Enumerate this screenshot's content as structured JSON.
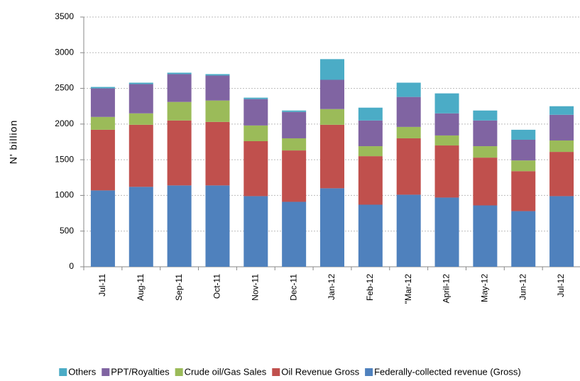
{
  "chart_data": {
    "type": "stacked-bar",
    "y_label": "N' billion",
    "categories": [
      "Jul-11",
      "Aug-11",
      "Sep-11",
      "Oct-11",
      "Nov-11",
      "Dec-11",
      "Jan-12",
      "Feb-12",
      "\"Mar-12",
      "April-12",
      "May-12",
      "Jun-12",
      "Jul-12"
    ],
    "series": [
      {
        "name": "Federally-collected revenue (Gross)",
        "color": "#4f81bd",
        "values": [
          1070,
          1120,
          1140,
          1140,
          990,
          910,
          1100,
          870,
          1010,
          970,
          860,
          780,
          990
        ]
      },
      {
        "name": "Oil Revenue Gross",
        "color": "#c0504d",
        "values": [
          850,
          870,
          910,
          890,
          770,
          720,
          890,
          680,
          790,
          730,
          670,
          560,
          620
        ]
      },
      {
        "name": "Crude oil/Gas Sales",
        "color": "#9bbb59",
        "values": [
          180,
          160,
          260,
          300,
          220,
          170,
          220,
          140,
          160,
          140,
          160,
          150,
          160
        ]
      },
      {
        "name": "PPT/Royalties",
        "color": "#8064a2",
        "values": [
          400,
          410,
          390,
          350,
          370,
          370,
          410,
          360,
          420,
          310,
          360,
          290,
          360
        ]
      },
      {
        "name": "Others",
        "color": "#4bacc6",
        "values": [
          20,
          20,
          20,
          20,
          20,
          20,
          290,
          180,
          200,
          280,
          140,
          140,
          120
        ]
      }
    ],
    "ylim": [
      0,
      3500
    ],
    "yticks": [
      0,
      500,
      1000,
      1500,
      2000,
      2500,
      3000,
      3500
    ],
    "grid": true,
    "legend": "bottom"
  }
}
